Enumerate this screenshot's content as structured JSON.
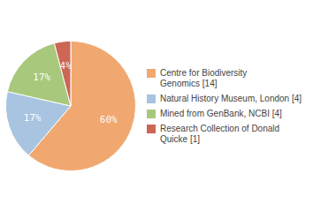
{
  "chart_data": {
    "type": "pie",
    "categories": [
      "Centre for Biodiversity\nGenomics [14]",
      "Natural History Museum, London [4]",
      "Mined from GenBank, NCBI [4]",
      "Research Collection of Donald\nQuicke [1]"
    ],
    "values": [
      60,
      17,
      17,
      4
    ],
    "value_labels": [
      "60%",
      "17%",
      "17%",
      "4%"
    ],
    "data_labels": true,
    "colors": [
      "#f0a870",
      "#a8c4e0",
      "#a8c87c",
      "#cc6655"
    ],
    "legend": "right"
  }
}
